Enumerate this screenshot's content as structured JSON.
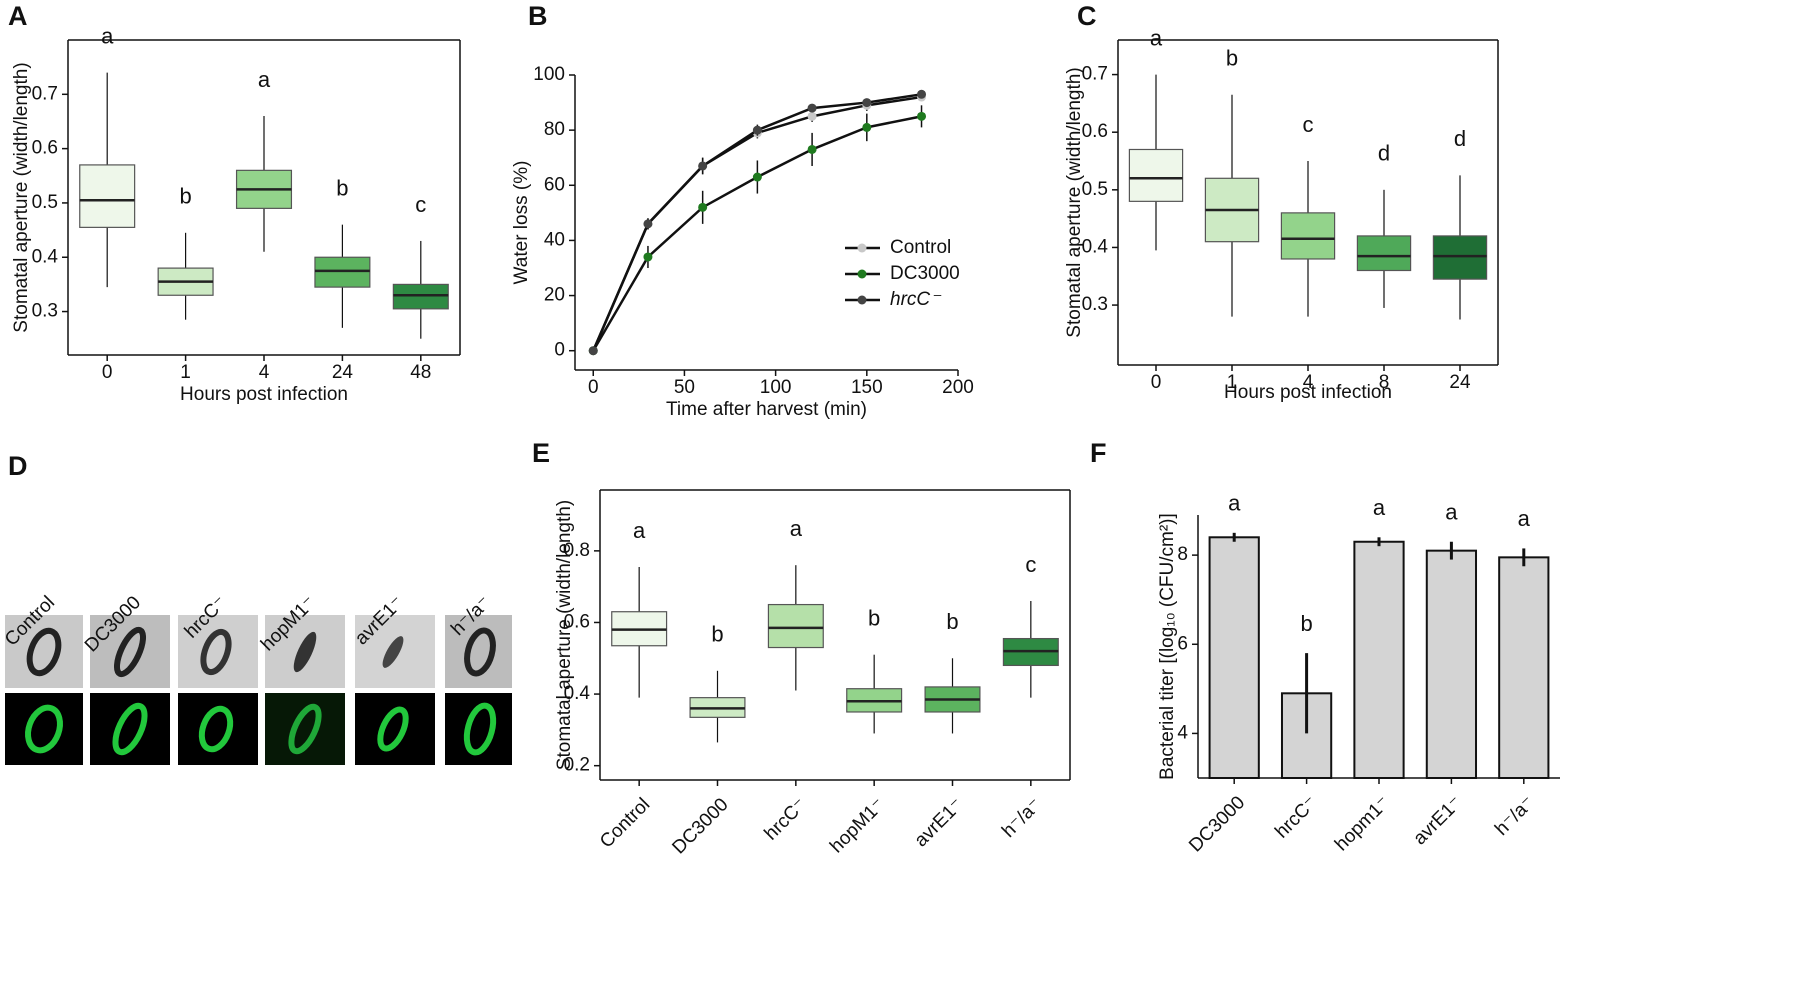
{
  "chart_data": [
    {
      "type": "box",
      "panel": "A",
      "ylabel": "Stomatal aperture (width/length)",
      "xlabel": "Hours post infection",
      "categories": [
        "0",
        "1",
        "4",
        "24",
        "48"
      ],
      "whisker_low": [
        0.345,
        0.285,
        0.41,
        0.27,
        0.25
      ],
      "q1": [
        0.455,
        0.33,
        0.49,
        0.345,
        0.305
      ],
      "median": [
        0.505,
        0.355,
        0.525,
        0.375,
        0.33
      ],
      "q3": [
        0.57,
        0.38,
        0.56,
        0.4,
        0.35
      ],
      "whisker_high": [
        0.74,
        0.445,
        0.66,
        0.46,
        0.43
      ],
      "letters": [
        "a",
        "b",
        "a",
        "b",
        "c"
      ],
      "colors": [
        "#eef7ea",
        "#cdeac4",
        "#93d38b",
        "#5cb35f",
        "#2e8a43"
      ],
      "ylim": [
        0.22,
        0.8
      ],
      "yticks": [
        0.3,
        0.4,
        0.5,
        0.6,
        0.7
      ]
    },
    {
      "type": "line",
      "panel": "B",
      "ylabel": "Water loss (%)",
      "xlabel": "Time after harvest (min)",
      "x": [
        0,
        30,
        60,
        90,
        120,
        150,
        180
      ],
      "series": [
        {
          "name": "Control",
          "color": "#c8c8c8",
          "values": [
            0,
            46,
            67,
            79,
            85,
            89,
            92
          ],
          "errors": [
            1,
            2,
            3,
            2,
            2,
            2,
            1
          ]
        },
        {
          "name": "DC3000",
          "color": "#1f7a1f",
          "values": [
            0,
            34,
            52,
            63,
            73,
            81,
            85
          ],
          "errors": [
            1,
            4,
            6,
            6,
            6,
            5,
            4
          ]
        },
        {
          "name": "hrcC⁻",
          "color": "#444444",
          "values": [
            0,
            46,
            67,
            80,
            88,
            90,
            93
          ],
          "errors": [
            1,
            2,
            3,
            2,
            1,
            1,
            1
          ]
        }
      ],
      "xlim": [
        -10,
        200
      ],
      "xticks": [
        0,
        50,
        100,
        150,
        200
      ],
      "ylim": [
        -7,
        100
      ],
      "yticks": [
        0,
        20,
        40,
        60,
        80,
        100
      ]
    },
    {
      "type": "box",
      "panel": "C",
      "ylabel": "Stomatal aperture (width/length)",
      "xlabel": "Hours post infection",
      "categories": [
        "0",
        "1",
        "4",
        "8",
        "24"
      ],
      "whisker_low": [
        0.395,
        0.28,
        0.28,
        0.295,
        0.275
      ],
      "q1": [
        0.48,
        0.41,
        0.38,
        0.36,
        0.345
      ],
      "median": [
        0.52,
        0.465,
        0.415,
        0.385,
        0.385
      ],
      "q3": [
        0.57,
        0.52,
        0.46,
        0.42,
        0.42
      ],
      "whisker_high": [
        0.7,
        0.665,
        0.55,
        0.5,
        0.525
      ],
      "letters": [
        "a",
        "b",
        "c",
        "d",
        "d"
      ],
      "colors": [
        "#eef7ea",
        "#cdeac4",
        "#93d38b",
        "#4fa959",
        "#1f6e35"
      ],
      "ylim": [
        0.196,
        0.76
      ],
      "yticks": [
        0.3,
        0.4,
        0.5,
        0.6,
        0.7
      ]
    },
    {
      "type": "image",
      "panel": "D",
      "labels": [
        "Control",
        "DC3000",
        "hrcC⁻",
        "hopM1⁻",
        "avrE1⁻",
        "h⁻/a⁻"
      ]
    },
    {
      "type": "box",
      "panel": "E",
      "ylabel": "Stomatal aperture (width/length)",
      "categories": [
        "Control",
        "DC3000",
        "hrcC⁻",
        "hopM1⁻",
        "avrE1⁻",
        "h⁻/a⁻"
      ],
      "whisker_low": [
        0.39,
        0.265,
        0.41,
        0.29,
        0.29,
        0.39
      ],
      "q1": [
        0.535,
        0.335,
        0.53,
        0.35,
        0.35,
        0.48
      ],
      "median": [
        0.58,
        0.36,
        0.585,
        0.38,
        0.385,
        0.52
      ],
      "q3": [
        0.63,
        0.39,
        0.65,
        0.415,
        0.42,
        0.555
      ],
      "whisker_high": [
        0.755,
        0.465,
        0.76,
        0.51,
        0.5,
        0.66
      ],
      "letters": [
        "a",
        "b",
        "a",
        "b",
        "b",
        "c"
      ],
      "colors": [
        "#eef7ea",
        "#cdeac4",
        "#b5e0a9",
        "#93d38b",
        "#5cb35f",
        "#2e8a43"
      ],
      "ylim": [
        0.16,
        0.97
      ],
      "yticks": [
        0.2,
        0.4,
        0.6,
        0.8
      ]
    },
    {
      "type": "bar",
      "panel": "F",
      "ylabel": "Bacterial titer [(log₁₀ (CFU/cm²)]",
      "categories": [
        "DC3000",
        "hrcC⁻",
        "hopm1⁻",
        "avrE1⁻",
        "h⁻/a⁻"
      ],
      "values": [
        8.4,
        4.9,
        8.3,
        8.1,
        7.95
      ],
      "errors": [
        0.1,
        0.9,
        0.1,
        0.2,
        0.2
      ],
      "letters": [
        "a",
        "b",
        "a",
        "a",
        "a"
      ],
      "color": "#d4d4d4",
      "ylim": [
        3,
        8.9
      ],
      "yticks": [
        4,
        6,
        8
      ]
    }
  ]
}
